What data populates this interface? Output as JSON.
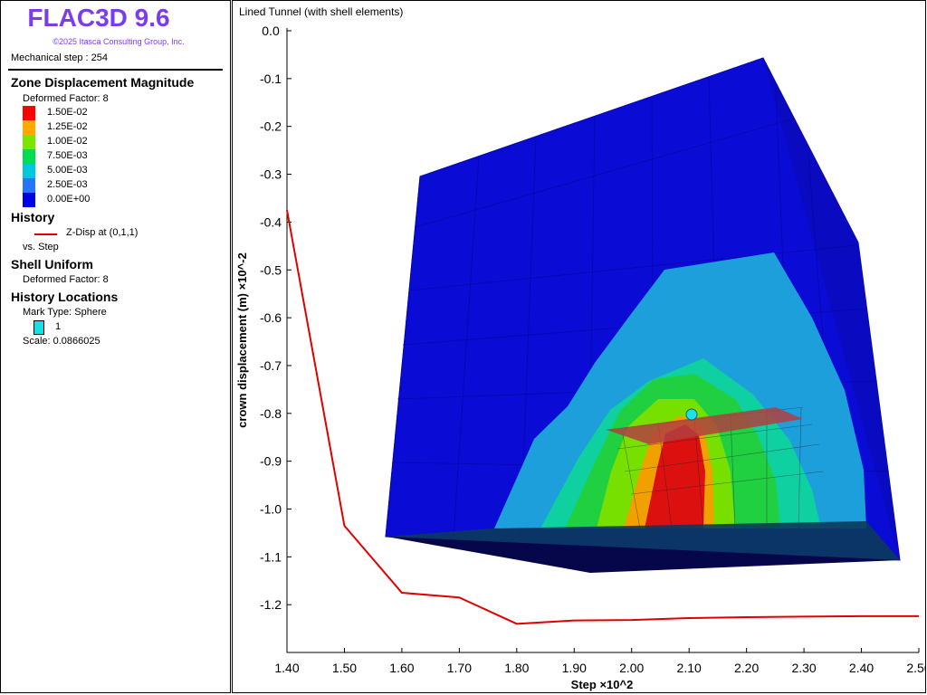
{
  "app": {
    "title": "FLAC3D 9.6",
    "copyright": "©2025 Itasca Consulting Group, Inc."
  },
  "status": {
    "mechanical_step": "Mechanical step : 254"
  },
  "legend": {
    "zone_title": "Zone Displacement Magnitude",
    "deformed_factor": "Deformed Factor: 8",
    "entries": [
      {
        "label": "1.50E-02",
        "color": "#ff0000"
      },
      {
        "label": "1.25E-02",
        "color": "#ffaa00"
      },
      {
        "label": "1.00E-02",
        "color": "#77e600"
      },
      {
        "label": "7.50E-03",
        "color": "#00dd55"
      },
      {
        "label": "5.00E-03",
        "color": "#00c8dc"
      },
      {
        "label": "2.50E-03",
        "color": "#2575ff"
      },
      {
        "label": "0.00E+00",
        "color": "#0000e6"
      }
    ],
    "history_title": "History",
    "history_item": "Z-Disp at (0,1,1)",
    "history_vs": "vs. Step",
    "shell_title": "Shell Uniform",
    "shell_factor": "Deformed Factor: 8",
    "hist_loc_title": "History Locations",
    "mark_type": "Mark Type: Sphere",
    "mark_label": "1",
    "scale": "Scale: 0.0866025"
  },
  "view": {
    "title": "Lined Tunnel (with shell elements)"
  },
  "chart_data": {
    "type": "line",
    "xlabel": "Step ×10^2",
    "ylabel": "crown displacement (m) ×10^-2",
    "xlim": [
      1.4,
      2.5
    ],
    "ylim": [
      -1.3,
      0.0
    ],
    "x_ticks": [
      "1.40",
      "1.50",
      "1.60",
      "1.70",
      "1.80",
      "1.90",
      "2.00",
      "2.10",
      "2.20",
      "2.30",
      "2.40",
      "2.50"
    ],
    "y_ticks": [
      "0.0",
      "-0.1",
      "-0.2",
      "-0.3",
      "-0.4",
      "-0.5",
      "-0.6",
      "-0.7",
      "-0.8",
      "-0.9",
      "-1.0",
      "-1.1",
      "-1.2"
    ],
    "series": [
      {
        "name": "Z-Disp at (0,1,1)",
        "color": "#e00000",
        "x": [
          1.4,
          1.5,
          1.6,
          1.7,
          1.8,
          1.9,
          2.0,
          2.1,
          2.2,
          2.3,
          2.4,
          2.5
        ],
        "y": [
          -0.375,
          -1.035,
          -1.175,
          -1.185,
          -1.24,
          -1.233,
          -1.232,
          -1.228,
          -1.226,
          -1.225,
          -1.224,
          -1.224
        ]
      }
    ],
    "grid": false
  }
}
